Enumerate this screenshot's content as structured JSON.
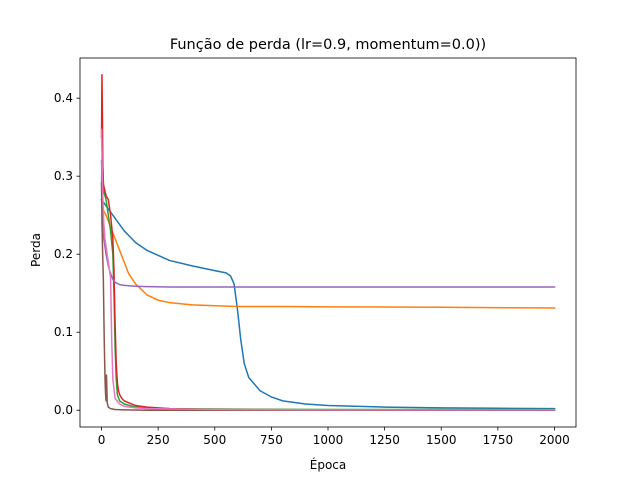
{
  "chart_data": {
    "type": "line",
    "title": "Função de perda (lr=0.9, momentum=0.0))",
    "xlabel": "Época",
    "ylabel": "Perda",
    "xlim": [
      -95,
      2095
    ],
    "ylim": [
      -0.0215,
      0.4515
    ],
    "xticks": [
      0,
      250,
      500,
      750,
      1000,
      1250,
      1500,
      1750,
      2000
    ],
    "yticks": [
      0.0,
      0.1,
      0.2,
      0.3,
      0.4
    ],
    "xtick_labels": [
      "0",
      "250",
      "500",
      "750",
      "1000",
      "1250",
      "1500",
      "1750",
      "2000"
    ],
    "ytick_labels": [
      "0.0",
      "0.1",
      "0.2",
      "0.3",
      "0.4"
    ],
    "grid": false,
    "legend": "none",
    "series": [
      {
        "color": "#1f77b4",
        "x": [
          0,
          10,
          20,
          50,
          100,
          150,
          200,
          300,
          400,
          500,
          550,
          570,
          585,
          600,
          615,
          630,
          650,
          700,
          750,
          800,
          900,
          1000,
          1250,
          1500,
          1750,
          2000
        ],
        "y": [
          0.27,
          0.266,
          0.262,
          0.25,
          0.23,
          0.215,
          0.205,
          0.192,
          0.185,
          0.179,
          0.176,
          0.172,
          0.162,
          0.13,
          0.09,
          0.06,
          0.042,
          0.025,
          0.017,
          0.012,
          0.008,
          0.006,
          0.004,
          0.003,
          0.0025,
          0.002
        ]
      },
      {
        "color": "#ff7f0e",
        "x": [
          0,
          10,
          20,
          40,
          60,
          80,
          100,
          120,
          150,
          200,
          250,
          300,
          400,
          500,
          600,
          800,
          1000,
          1500,
          2000
        ],
        "y": [
          0.27,
          0.255,
          0.25,
          0.235,
          0.22,
          0.205,
          0.19,
          0.175,
          0.162,
          0.148,
          0.141,
          0.138,
          0.135,
          0.134,
          0.133,
          0.133,
          0.1325,
          0.132,
          0.131
        ]
      },
      {
        "color": "#2ca02c",
        "x": [
          0,
          3,
          10,
          20,
          30,
          40,
          50,
          55,
          60,
          65,
          70,
          80,
          100,
          150,
          200,
          300,
          500,
          1000,
          2000
        ],
        "y": [
          0.29,
          0.33,
          0.28,
          0.27,
          0.25,
          0.23,
          0.2,
          0.15,
          0.08,
          0.04,
          0.02,
          0.012,
          0.008,
          0.004,
          0.003,
          0.002,
          0.0015,
          0.001,
          0.001
        ]
      },
      {
        "color": "#d62728",
        "x": [
          0,
          2,
          4,
          6,
          8,
          12,
          20,
          30,
          40,
          50,
          55,
          60,
          65,
          70,
          75,
          80,
          90,
          100,
          150,
          200,
          300,
          500,
          1000,
          2000
        ],
        "y": [
          0.35,
          0.43,
          0.38,
          0.31,
          0.29,
          0.285,
          0.275,
          0.27,
          0.25,
          0.22,
          0.18,
          0.11,
          0.06,
          0.035,
          0.025,
          0.02,
          0.015,
          0.012,
          0.006,
          0.004,
          0.002,
          0.001,
          0.0005,
          0.0005
        ]
      },
      {
        "color": "#9467bd",
        "x": [
          0,
          5,
          10,
          20,
          30,
          40,
          50,
          60,
          80,
          100,
          150,
          200,
          300,
          500,
          1000,
          1500,
          2000
        ],
        "y": [
          0.32,
          0.26,
          0.22,
          0.2,
          0.185,
          0.175,
          0.168,
          0.164,
          0.161,
          0.16,
          0.159,
          0.1585,
          0.158,
          0.158,
          0.158,
          0.158,
          0.158
        ]
      },
      {
        "color": "#8c564b",
        "x": [
          0,
          2,
          5,
          8,
          10,
          12,
          14,
          16,
          18,
          20,
          22,
          25,
          28,
          30,
          40,
          60,
          100,
          200,
          500,
          1000,
          2000
        ],
        "y": [
          0.29,
          0.24,
          0.2,
          0.17,
          0.13,
          0.09,
          0.06,
          0.035,
          0.02,
          0.012,
          0.045,
          0.01,
          0.006,
          0.004,
          0.002,
          0.001,
          0.0005,
          0.0,
          0.0,
          0.0,
          0.0
        ]
      },
      {
        "color": "#e377c2",
        "x": [
          0,
          2,
          5,
          10,
          15,
          20,
          30,
          40,
          45,
          50,
          60,
          80,
          100,
          150,
          200,
          500,
          1000,
          2000
        ],
        "y": [
          0.36,
          0.33,
          0.28,
          0.24,
          0.22,
          0.21,
          0.19,
          0.17,
          0.09,
          0.04,
          0.015,
          0.008,
          0.005,
          0.003,
          0.002,
          0.001,
          0.0005,
          0.0005
        ]
      }
    ]
  }
}
